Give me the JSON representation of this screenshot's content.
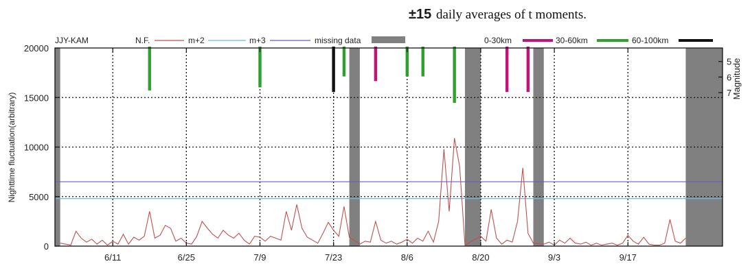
{
  "caption": {
    "symbol": "±15",
    "text": "daily averages of t moments."
  },
  "chart_data": {
    "type": "line",
    "station": "JJY-KAM",
    "ylabel": "Nighttime fluctuation(arbitrary)",
    "y2label": "Magnitude",
    "xlim": [
      "2000-05-31",
      "2000-10-05"
    ],
    "ylim": [
      0,
      20000
    ],
    "x_ticks": [
      {
        "label": "6/11",
        "date": "06-11"
      },
      {
        "label": "6/25",
        "date": "06-25"
      },
      {
        "label": "7/9",
        "date": "07-09"
      },
      {
        "label": "7/23",
        "date": "07-23"
      },
      {
        "label": "8/6",
        "date": "08-06"
      },
      {
        "label": "8/20",
        "date": "08-20"
      },
      {
        "label": "9/3",
        "date": "09-03"
      },
      {
        "label": "9/17",
        "date": "09-17"
      }
    ],
    "y_ticks": [
      0,
      5000,
      10000,
      15000,
      20000
    ],
    "y_tick_labels": [
      "0",
      "5000",
      "10000",
      "15000",
      "20000"
    ],
    "magnitude_ticks": [
      {
        "label": "5",
        "value": 5
      },
      {
        "label": "6",
        "value": 6
      },
      {
        "label": "7",
        "value": 7
      }
    ],
    "grid": true,
    "legend": {
      "nf": "N.F.",
      "m2": "m+2",
      "m3": "m+3",
      "missing": "missing data",
      "d1": "0-30km",
      "d2": "30-60km",
      "d3": "60-100km"
    },
    "colors": {
      "nf": "#c0504d",
      "m2": "#6fb7df",
      "m3": "#6a5acd",
      "missing": "#808080",
      "d1": "#c0147a",
      "d2": "#2ea02e",
      "d3": "#111111"
    },
    "thresholds": {
      "m2": 4800,
      "m3": 6500
    },
    "missing_data": [
      [
        "05-31",
        "06-01"
      ],
      [
        "07-26",
        "07-28"
      ],
      [
        "08-17",
        "08-20"
      ],
      [
        "08-30",
        "09-01"
      ],
      [
        "09-28",
        "10-05"
      ]
    ],
    "series": [
      {
        "name": "N.F.",
        "x": [
          "06-01",
          "06-02",
          "06-03",
          "06-04",
          "06-05",
          "06-06",
          "06-07",
          "06-08",
          "06-09",
          "06-10",
          "06-11",
          "06-12",
          "06-13",
          "06-14",
          "06-15",
          "06-16",
          "06-17",
          "06-18",
          "06-19",
          "06-20",
          "06-21",
          "06-22",
          "06-23",
          "06-24",
          "06-25",
          "06-26",
          "06-27",
          "06-28",
          "06-29",
          "06-30",
          "07-01",
          "07-02",
          "07-03",
          "07-04",
          "07-05",
          "07-06",
          "07-07",
          "07-08",
          "07-09",
          "07-10",
          "07-11",
          "07-12",
          "07-13",
          "07-14",
          "07-15",
          "07-16",
          "07-17",
          "07-18",
          "07-19",
          "07-20",
          "07-21",
          "07-22",
          "07-23",
          "07-24",
          "07-25",
          "07-26",
          "07-28",
          "07-29",
          "07-30",
          "07-31",
          "08-01",
          "08-02",
          "08-03",
          "08-04",
          "08-05",
          "08-06",
          "08-07",
          "08-08",
          "08-09",
          "08-10",
          "08-11",
          "08-12",
          "08-13",
          "08-14",
          "08-15",
          "08-16",
          "08-17",
          "08-20",
          "08-21",
          "08-22",
          "08-23",
          "08-24",
          "08-25",
          "08-26",
          "08-27",
          "08-28",
          "08-29",
          "08-30",
          "09-01",
          "09-02",
          "09-03",
          "09-04",
          "09-05",
          "09-06",
          "09-07",
          "09-08",
          "09-09",
          "09-10",
          "09-11",
          "09-12",
          "09-13",
          "09-14",
          "09-15",
          "09-16",
          "09-17",
          "09-18",
          "09-19",
          "09-20",
          "09-21",
          "09-22",
          "09-23",
          "09-24",
          "09-25",
          "09-26",
          "09-27",
          "09-28"
        ],
        "values": [
          300,
          200,
          100,
          1500,
          800,
          400,
          700,
          200,
          600,
          100,
          500,
          200,
          1200,
          200,
          900,
          600,
          1000,
          3500,
          800,
          1100,
          2100,
          1800,
          500,
          800,
          300,
          200,
          1000,
          2500,
          1800,
          1200,
          800,
          1600,
          1100,
          800,
          1300,
          600,
          200,
          1000,
          900,
          500,
          1000,
          800,
          600,
          3500,
          1600,
          4200,
          1800,
          900,
          600,
          300,
          1300,
          2400,
          1600,
          1000,
          4000,
          900,
          200,
          500,
          400,
          2500,
          600,
          300,
          500,
          200,
          400,
          700,
          300,
          800,
          500,
          1500,
          400,
          2500,
          9800,
          3500,
          10900,
          8000,
          100,
          1000,
          500,
          3700,
          800,
          200,
          600,
          400,
          2500,
          7900,
          1300,
          300,
          200,
          400,
          100,
          600,
          300,
          800,
          300,
          200,
          400,
          100,
          300,
          100,
          200,
          300,
          100,
          300,
          1100,
          500,
          200,
          900,
          200,
          100,
          100,
          300,
          2700,
          500,
          300,
          800
        ]
      }
    ],
    "earthquakes": [
      {
        "date": "06-18",
        "magnitude": 6.2,
        "distance": "60-100km"
      },
      {
        "date": "07-09",
        "magnitude": 6.0,
        "distance": "60-100km"
      },
      {
        "date": "07-23",
        "magnitude": 6.3,
        "distance": "over-100km"
      },
      {
        "date": "07-25",
        "magnitude": 5.3,
        "distance": "60-100km"
      },
      {
        "date": "07-31",
        "magnitude": 5.6,
        "distance": "30-60km"
      },
      {
        "date": "08-06",
        "magnitude": 5.3,
        "distance": "60-100km"
      },
      {
        "date": "08-09",
        "magnitude": 5.3,
        "distance": "60-100km"
      },
      {
        "date": "08-15",
        "magnitude": 7.0,
        "distance": "30-60km-green"
      },
      {
        "date": "08-25",
        "magnitude": 6.3,
        "distance": "30-60km"
      },
      {
        "date": "08-29",
        "magnitude": 6.3,
        "distance": "30-60km"
      }
    ]
  }
}
